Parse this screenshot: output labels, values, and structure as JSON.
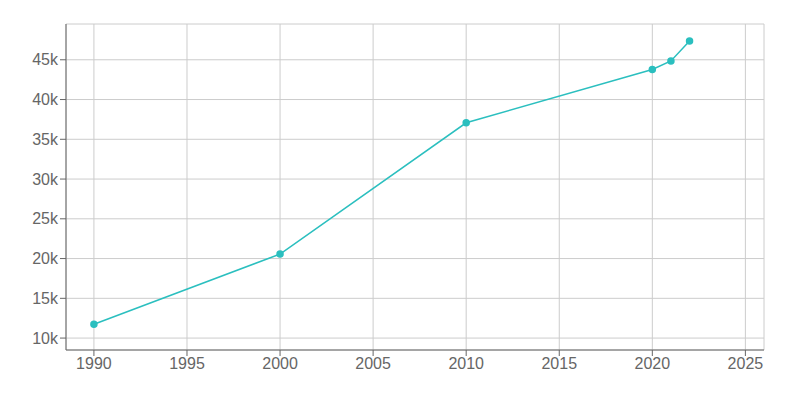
{
  "chart_data": {
    "type": "line",
    "x": [
      1990,
      2000,
      2010,
      2020,
      2021,
      2022
    ],
    "values": [
      11739,
      20568,
      37076,
      43775,
      44853,
      47375
    ],
    "color": "#2bbfbf",
    "marker": "o",
    "xlim": [
      1988.5,
      2026
    ],
    "ylim": [
      8500,
      49500
    ],
    "xticks": [
      1990,
      1995,
      2000,
      2005,
      2010,
      2015,
      2020,
      2025
    ],
    "yticks": [
      {
        "value": 10000,
        "label": "10k"
      },
      {
        "value": 15000,
        "label": "15k"
      },
      {
        "value": 20000,
        "label": "20k"
      },
      {
        "value": 25000,
        "label": "25k"
      },
      {
        "value": 30000,
        "label": "30k"
      },
      {
        "value": 35000,
        "label": "35k"
      },
      {
        "value": 40000,
        "label": "40k"
      },
      {
        "value": 45000,
        "label": "45k"
      }
    ],
    "grid": true
  }
}
